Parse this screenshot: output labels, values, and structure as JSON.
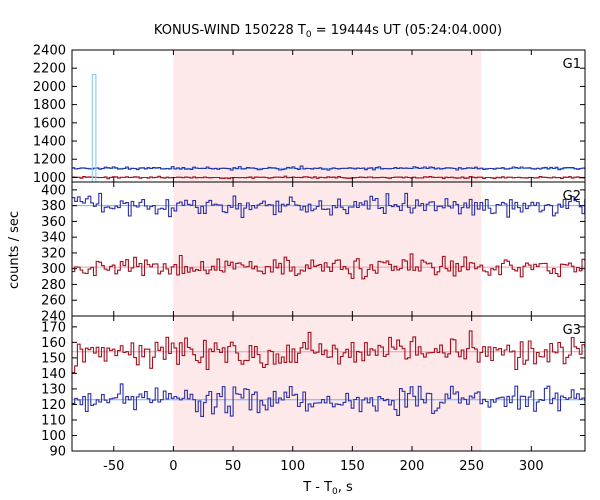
{
  "chart_data": {
    "type": "line",
    "title_main": "KONUS-WIND 150228 T",
    "title_sub": "0",
    "title_rest": " = 19444s UT (05:24:04.000)",
    "xlabel_main": "T - T",
    "xlabel_sub": "0",
    "xlabel_rest": ", s",
    "ylabel": "counts / sec",
    "xlim": [
      -85,
      345
    ],
    "xticks": [
      -50,
      0,
      50,
      100,
      150,
      200,
      250,
      300
    ],
    "highlight": {
      "x0": 0,
      "x1": 258
    },
    "colors": {
      "blue": "#2b2fa8",
      "red": "#a3101e",
      "blue_fit": "#6fb2e8",
      "red_fit": "#f09ab0",
      "spike": "#8fd0ee",
      "band": "#fde8ea"
    },
    "panels": [
      {
        "name": "G1",
        "ylim": [
          950,
          2400
        ],
        "yticks": [
          1000,
          1200,
          1400,
          1600,
          1800,
          2000,
          2200,
          2400
        ],
        "spike": {
          "x0": -68,
          "x1": -65,
          "top": 2130
        },
        "series": [
          {
            "color": "blue",
            "base": 1100,
            "noise": 12,
            "seed": 11,
            "fit": 1100
          },
          {
            "color": "red",
            "base": 1000,
            "noise": 8,
            "seed": 23,
            "fit": 1000
          }
        ]
      },
      {
        "name": "G2",
        "ylim": [
          240,
          410
        ],
        "yticks": [
          240,
          260,
          280,
          300,
          320,
          340,
          360,
          380,
          400
        ],
        "series": [
          {
            "color": "blue",
            "base": 380,
            "noise": 9,
            "seed": 37,
            "fit": 380
          },
          {
            "color": "red",
            "base": 302,
            "noise": 9,
            "seed": 53,
            "fit": 302
          }
        ]
      },
      {
        "name": "G3",
        "ylim": [
          90,
          177
        ],
        "yticks": [
          90,
          100,
          110,
          120,
          130,
          140,
          150,
          160,
          170
        ],
        "series": [
          {
            "color": "red",
            "base": 154,
            "noise": 7,
            "seed": 71,
            "fit": 154
          },
          {
            "color": "blue",
            "base": 123,
            "noise": 6,
            "seed": 89,
            "fit": 123
          }
        ]
      }
    ]
  }
}
